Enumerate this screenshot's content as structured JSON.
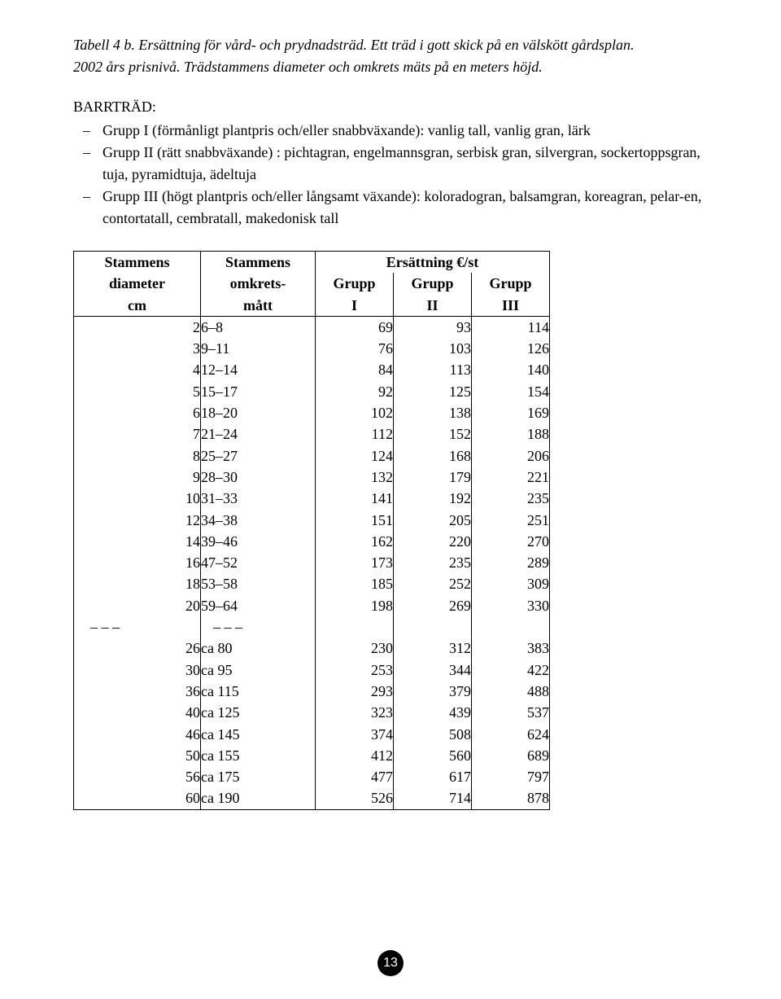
{
  "caption": {
    "line1": "Tabell 4 b. Ersättning för vård- och prydnadsträd. Ett träd i gott skick på en välskött gårdsplan.",
    "line2": "2002 års prisnivå. Trädstammens diameter och omkrets mäts på en meters höjd."
  },
  "section_heading": "BARRTRÄD:",
  "groups": [
    "Grupp I (förmånligt plantpris och/eller snabbväxande): vanlig tall, vanlig gran, lärk",
    "Grupp II (rätt snabbväxande) : pichtagran, engelmannsgran, serbisk gran, silvergran, sockertoppsgran, tuja, pyramidtuja, ädeltuja",
    "Grupp III (högt plantpris och/eller långsamt växande): koloradogran, balsamgran, koreagran, pelar-en, contortatall, cembratall, makedonisk tall"
  ],
  "table": {
    "header": {
      "col1_l1": "Stammens",
      "col1_l2": "diameter",
      "col1_l3": "cm",
      "col2_l1": "Stammens",
      "col2_l2": "omkrets-",
      "col2_l3": "mått",
      "span_l1": "Ersättning €/st",
      "g1_l2": "Grupp",
      "g1_l3": "I",
      "g2_l2": "Grupp",
      "g2_l3": "II",
      "g3_l2": "Grupp",
      "g3_l3": "III"
    },
    "rows": [
      {
        "d": "2",
        "c": "6–8",
        "g1": "69",
        "g2": "93",
        "g3": "114"
      },
      {
        "d": "3",
        "c": "9–11",
        "g1": "76",
        "g2": "103",
        "g3": "126"
      },
      {
        "d": "4",
        "c": "12–14",
        "g1": "84",
        "g2": "113",
        "g3": "140"
      },
      {
        "d": "5",
        "c": "15–17",
        "g1": "92",
        "g2": "125",
        "g3": "154"
      },
      {
        "d": "6",
        "c": "18–20",
        "g1": "102",
        "g2": "138",
        "g3": "169"
      },
      {
        "d": "7",
        "c": "21–24",
        "g1": "112",
        "g2": "152",
        "g3": "188"
      },
      {
        "d": "8",
        "c": "25–27",
        "g1": "124",
        "g2": "168",
        "g3": "206"
      },
      {
        "d": "9",
        "c": "28–30",
        "g1": "132",
        "g2": "179",
        "g3": "221"
      },
      {
        "d": "10",
        "c": "31–33",
        "g1": "141",
        "g2": "192",
        "g3": "235"
      },
      {
        "d": "12",
        "c": "34–38",
        "g1": "151",
        "g2": "205",
        "g3": "251"
      },
      {
        "d": "14",
        "c": "39–46",
        "g1": "162",
        "g2": "220",
        "g3": "270"
      },
      {
        "d": "16",
        "c": "47–52",
        "g1": "173",
        "g2": "235",
        "g3": "289"
      },
      {
        "d": "18",
        "c": "53–58",
        "g1": "185",
        "g2": "252",
        "g3": "309"
      },
      {
        "d": "20",
        "c": "59–64",
        "g1": "198",
        "g2": "269",
        "g3": "330"
      },
      {
        "d": "– – –",
        "c": "– – –",
        "g1": "",
        "g2": "",
        "g3": ""
      },
      {
        "d": "26",
        "c": "ca  80",
        "g1": "230",
        "g2": "312",
        "g3": "383"
      },
      {
        "d": "30",
        "c": "ca  95",
        "g1": "253",
        "g2": "344",
        "g3": "422"
      },
      {
        "d": "36",
        "c": "ca 115",
        "g1": "293",
        "g2": "379",
        "g3": "488"
      },
      {
        "d": "40",
        "c": "ca 125",
        "g1": "323",
        "g2": "439",
        "g3": "537"
      },
      {
        "d": "46",
        "c": "ca 145",
        "g1": "374",
        "g2": "508",
        "g3": "624"
      },
      {
        "d": "50",
        "c": "ca 155",
        "g1": "412",
        "g2": "560",
        "g3": "689"
      },
      {
        "d": "56",
        "c": "ca 175",
        "g1": "477",
        "g2": "617",
        "g3": "797"
      },
      {
        "d": "60",
        "c": "ca 190",
        "g1": "526",
        "g2": "714",
        "g3": "878"
      }
    ]
  },
  "page_number": "13"
}
